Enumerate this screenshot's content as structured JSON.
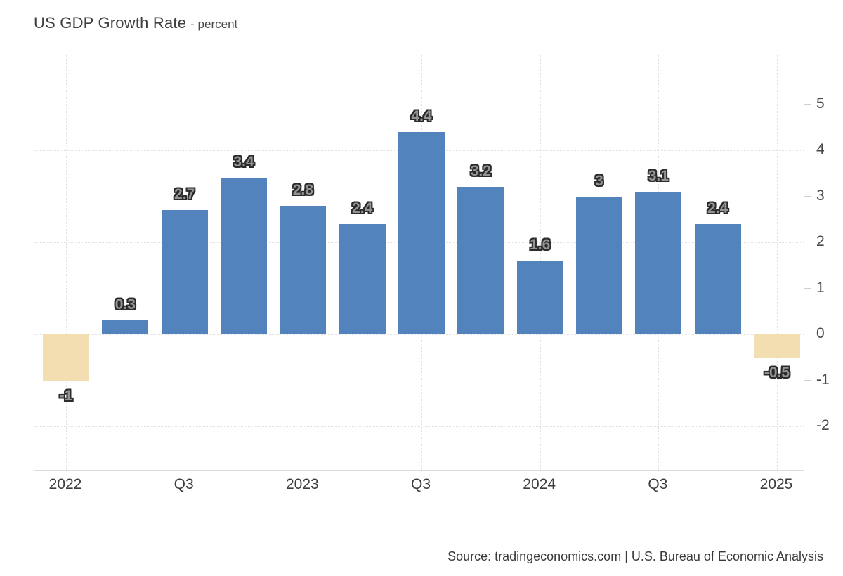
{
  "header": {
    "title": "US GDP Growth Rate",
    "subtitle": "- percent"
  },
  "footer": {
    "source": "Source: tradingeconomics.com | U.S. Bureau of Economic Analysis"
  },
  "chart_data": {
    "type": "bar",
    "title": "US GDP Growth Rate",
    "unit": "percent",
    "values": [
      -1,
      0.3,
      2.7,
      3.4,
      2.8,
      2.4,
      4.4,
      3.2,
      1.6,
      3,
      3.1,
      2.4,
      -0.5
    ],
    "bar_labels": [
      "-1",
      "0.3",
      "2.7",
      "3.4",
      "2.8",
      "2.4",
      "4.4",
      "3.2",
      "1.6",
      "3",
      "3.1",
      "2.4",
      "-0.5"
    ],
    "x_ticks": [
      {
        "label": "2022",
        "bar_index": 0
      },
      {
        "label": "Q3",
        "bar_index": 2
      },
      {
        "label": "2023",
        "bar_index": 4
      },
      {
        "label": "Q3",
        "bar_index": 6
      },
      {
        "label": "2024",
        "bar_index": 8
      },
      {
        "label": "Q3",
        "bar_index": 10
      },
      {
        "label": "2025",
        "bar_index": 12
      }
    ],
    "y_ticks": [
      5,
      4,
      3,
      2,
      1,
      0,
      -1,
      -2
    ],
    "ylim": [
      -3,
      6
    ],
    "y_axis_side": "right",
    "grid": "dotted",
    "legend": "none",
    "colors": {
      "positive_bar": "#5283bc",
      "negative_bar": "#f3deb1",
      "grid": "#e2e2e2",
      "axis": "#dcdcdc",
      "label_fill": "#949494",
      "label_outline": "#2b2b2b"
    }
  }
}
